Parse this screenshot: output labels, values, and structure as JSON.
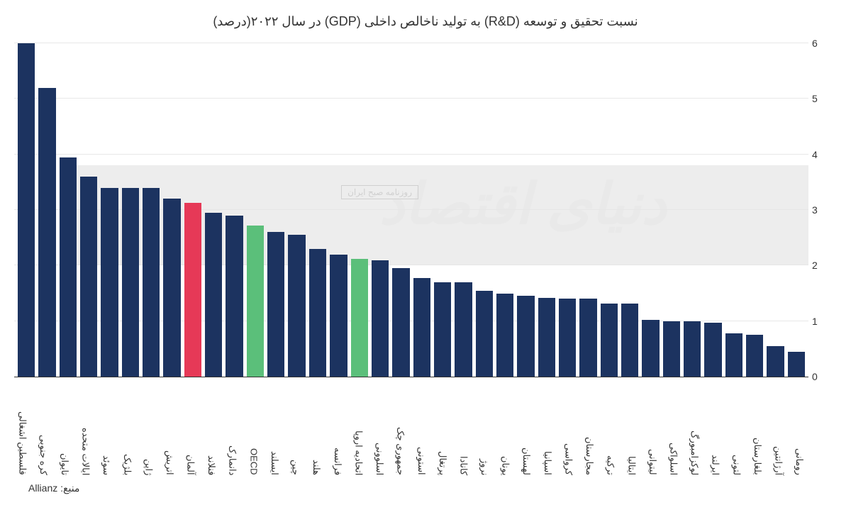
{
  "title": "نسبت تحقیق و توسعه (R&D) به تولید ناخالص داخلی (GDP) در سال ۲۰۲۲(درصد)",
  "source_label": "منبع:",
  "source_value": "Allianz",
  "watermark": "دنیای اقتصاد",
  "watermark_sub": "روزنامه صبح ایران",
  "chart": {
    "type": "bar",
    "ylim": [
      0,
      6
    ],
    "ytick_step": 1,
    "yticks": [
      "0",
      "1",
      "2",
      "3",
      "4",
      "5",
      "6"
    ],
    "shaded_band": {
      "from": 2,
      "to": 3.8,
      "color": "#e5e5e5"
    },
    "default_bar_color": "#1c3360",
    "highlight_colors": {
      "germany": "#e63957",
      "oecd": "#5bbf7a",
      "eu": "#5bbf7a"
    },
    "grid_color": "#e8e8e8",
    "background_color": "#ffffff",
    "axis_color": "#333333",
    "label_fontsize": 13,
    "tick_fontsize": 14,
    "title_fontsize": 18,
    "bars": [
      {
        "label": "فلسطین اشغالی",
        "value": 6.0,
        "color": "#1c3360"
      },
      {
        "label": "کره جنوبی",
        "value": 5.2,
        "color": "#1c3360"
      },
      {
        "label": "تایوان",
        "value": 3.95,
        "color": "#1c3360"
      },
      {
        "label": "ایالات متحده",
        "value": 3.6,
        "color": "#1c3360"
      },
      {
        "label": "سوئد",
        "value": 3.4,
        "color": "#1c3360"
      },
      {
        "label": "بلژیک",
        "value": 3.4,
        "color": "#1c3360"
      },
      {
        "label": "ژاپن",
        "value": 3.4,
        "color": "#1c3360"
      },
      {
        "label": "اتریش",
        "value": 3.2,
        "color": "#1c3360"
      },
      {
        "label": "آلمان",
        "value": 3.13,
        "color": "#e63957"
      },
      {
        "label": "فنلاند",
        "value": 2.95,
        "color": "#1c3360"
      },
      {
        "label": "دانمارک",
        "value": 2.9,
        "color": "#1c3360"
      },
      {
        "label": "OECD",
        "value": 2.72,
        "color": "#5bbf7a"
      },
      {
        "label": "ایسلند",
        "value": 2.6,
        "color": "#1c3360"
      },
      {
        "label": "چین",
        "value": 2.55,
        "color": "#1c3360"
      },
      {
        "label": "هلند",
        "value": 2.3,
        "color": "#1c3360"
      },
      {
        "label": "فرانسه",
        "value": 2.2,
        "color": "#1c3360"
      },
      {
        "label": "اتحادیه اروپا",
        "value": 2.12,
        "color": "#5bbf7a"
      },
      {
        "label": "اسلوونی",
        "value": 2.1,
        "color": "#1c3360"
      },
      {
        "label": "جمهوری چک",
        "value": 1.95,
        "color": "#1c3360"
      },
      {
        "label": "استونی",
        "value": 1.78,
        "color": "#1c3360"
      },
      {
        "label": "پرتغال",
        "value": 1.7,
        "color": "#1c3360"
      },
      {
        "label": "کانادا",
        "value": 1.7,
        "color": "#1c3360"
      },
      {
        "label": "نروژ",
        "value": 1.55,
        "color": "#1c3360"
      },
      {
        "label": "یونان",
        "value": 1.5,
        "color": "#1c3360"
      },
      {
        "label": "لهستان",
        "value": 1.45,
        "color": "#1c3360"
      },
      {
        "label": "اسپانیا",
        "value": 1.42,
        "color": "#1c3360"
      },
      {
        "label": "کرواسی",
        "value": 1.4,
        "color": "#1c3360"
      },
      {
        "label": "مجارستان",
        "value": 1.4,
        "color": "#1c3360"
      },
      {
        "label": "ترکیه",
        "value": 1.32,
        "color": "#1c3360"
      },
      {
        "label": "ایتالیا",
        "value": 1.32,
        "color": "#1c3360"
      },
      {
        "label": "لیتوانی",
        "value": 1.02,
        "color": "#1c3360"
      },
      {
        "label": "اسلواکی",
        "value": 1.0,
        "color": "#1c3360"
      },
      {
        "label": "لوکزامبورگ",
        "value": 1.0,
        "color": "#1c3360"
      },
      {
        "label": "ایرلند",
        "value": 0.97,
        "color": "#1c3360"
      },
      {
        "label": "لتونی",
        "value": 0.78,
        "color": "#1c3360"
      },
      {
        "label": "بلغارستان",
        "value": 0.75,
        "color": "#1c3360"
      },
      {
        "label": "آرژانتین",
        "value": 0.55,
        "color": "#1c3360"
      },
      {
        "label": "رومانی",
        "value": 0.45,
        "color": "#1c3360"
      }
    ]
  }
}
